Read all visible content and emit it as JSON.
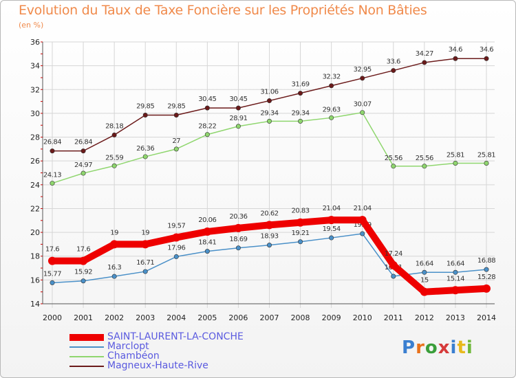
{
  "chart_data": {
    "type": "line",
    "title": "Evolution du Taux de Taxe Foncière sur les Propriétés Non Bâties",
    "ylabel": "(en %)",
    "xlabel": "",
    "categories": [
      "2000",
      "2001",
      "2002",
      "2003",
      "2004",
      "2005",
      "2006",
      "2007",
      "2008",
      "2009",
      "2010",
      "2011",
      "2012",
      "2013",
      "2014"
    ],
    "ylim": [
      14,
      36
    ],
    "yticks": [
      14,
      16,
      18,
      20,
      22,
      24,
      26,
      28,
      30,
      32,
      34,
      36
    ],
    "grid": true,
    "legend": "bottom-left",
    "series": [
      {
        "name": "Magneux-Haute-Rive",
        "color": "#6b1a1a",
        "values": [
          26.84,
          26.84,
          28.18,
          29.85,
          29.85,
          30.45,
          30.45,
          31.06,
          31.69,
          32.32,
          32.95,
          33.6,
          34.27,
          34.6,
          34.6
        ],
        "labels": [
          "26.84",
          "26.84",
          "28.18",
          "29.85",
          "29.85",
          "30.45",
          "30.45",
          "31.06",
          "31.69",
          "32.32",
          "32.95",
          "33.6",
          "34.27",
          "34.6",
          "34.6"
        ]
      },
      {
        "name": "Chambéon",
        "color": "#8fd66e",
        "values": [
          24.13,
          24.97,
          25.59,
          26.36,
          27,
          28.22,
          28.91,
          29.34,
          29.34,
          29.63,
          30.07,
          25.56,
          25.56,
          25.81,
          25.81
        ],
        "labels": [
          "24.13",
          "24.97",
          "25.59",
          "26.36",
          "27",
          "28.22",
          "28.91",
          "29.34",
          "29.34",
          "29.63",
          "30.07",
          "25.56",
          "25.56",
          "25.81",
          "25.81"
        ]
      },
      {
        "name": "Marclopt",
        "color": "#4a90c8",
        "values": [
          15.77,
          15.92,
          16.3,
          16.71,
          17.96,
          18.41,
          18.69,
          18.93,
          19.21,
          19.54,
          19.89,
          16.31,
          16.64,
          16.64,
          16.88
        ],
        "labels": [
          "15.77",
          "15.92",
          "16.3",
          "16.71",
          "17.96",
          "18.41",
          "18.69",
          "18.93",
          "19.21",
          "19.54",
          "19.89",
          "16.31",
          "16.64",
          "16.64",
          "16.88"
        ]
      },
      {
        "name": "SAINT-LAURENT-LA-CONCHE",
        "color": "#ee0000",
        "values": [
          17.6,
          17.6,
          19,
          19,
          19.57,
          20.06,
          20.36,
          20.62,
          20.83,
          21.04,
          21.04,
          17.24,
          15,
          15.14,
          15.28
        ],
        "labels": [
          "17.6",
          "17.6",
          "19",
          "19",
          "19.57",
          "20.06",
          "20.36",
          "20.62",
          "20.83",
          "21.04",
          "21.04",
          "17.24",
          "15",
          "15.14",
          "15.28"
        ]
      }
    ]
  },
  "legend": {
    "items": [
      "SAINT-LAURENT-LA-CONCHE",
      "Marclopt",
      "Chambéon",
      "Magneux-Haute-Rive"
    ]
  },
  "logo": {
    "text": "Proxiti"
  }
}
